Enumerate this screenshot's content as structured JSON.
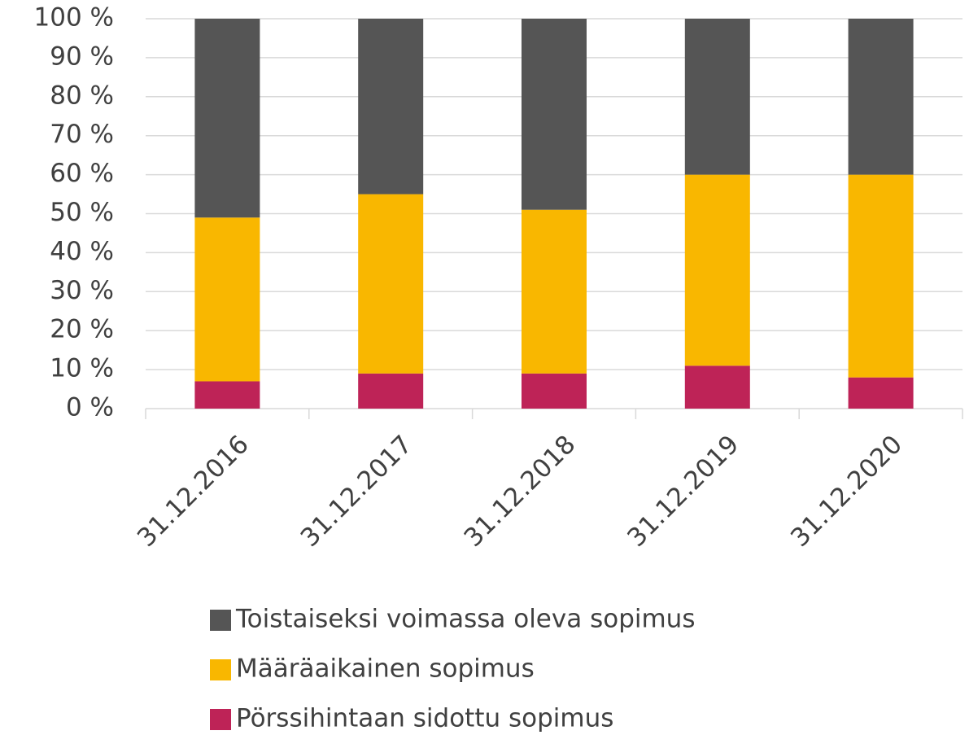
{
  "chart_data": {
    "type": "stacked_bar",
    "categories": [
      "31.12.2016",
      "31.12.2017",
      "31.12.2018",
      "31.12.2019",
      "31.12.2020"
    ],
    "series": [
      {
        "name": "Pörssihintaan sidottu sopimus",
        "color": "#be2357",
        "values": [
          7,
          9,
          9,
          11,
          8
        ]
      },
      {
        "name": "Määräaikainen sopimus",
        "color": "#f9b700",
        "values": [
          42,
          46,
          42,
          49,
          52
        ]
      },
      {
        "name": "Toistaiseksi voimassa oleva sopimus",
        "color": "#555555",
        "values": [
          51,
          45,
          49,
          40,
          40
        ]
      }
    ],
    "ylim": [
      0,
      100
    ],
    "yticks": [
      {
        "value": 0,
        "label": "0 %"
      },
      {
        "value": 10,
        "label": "10 %"
      },
      {
        "value": 20,
        "label": "20 %"
      },
      {
        "value": 30,
        "label": "30 %"
      },
      {
        "value": 40,
        "label": "40 %"
      },
      {
        "value": 50,
        "label": "50 %"
      },
      {
        "value": 60,
        "label": "60 %"
      },
      {
        "value": 70,
        "label": "70 %"
      },
      {
        "value": 80,
        "label": "80 %"
      },
      {
        "value": 90,
        "label": "90 %"
      },
      {
        "value": 100,
        "label": "100 %"
      }
    ],
    "grid": true,
    "legend": "bottom"
  }
}
